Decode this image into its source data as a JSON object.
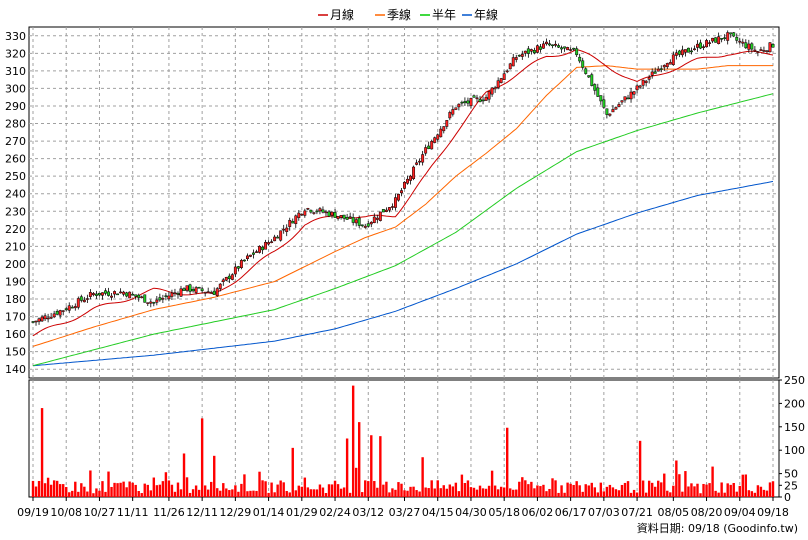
{
  "chart_data": {
    "type": "candlestick+line+bar",
    "legend": [
      {
        "label": "月線",
        "color": "#cc0000"
      },
      {
        "label": "季線",
        "color": "#ff6600"
      },
      {
        "label": "半年",
        "color": "#00cc00"
      },
      {
        "label": "年線",
        "color": "#0055cc"
      }
    ],
    "price_axis": {
      "ylim": [
        135,
        335
      ],
      "ticks": [
        140,
        150,
        160,
        170,
        180,
        190,
        200,
        210,
        220,
        230,
        240,
        250,
        260,
        270,
        280,
        290,
        300,
        310,
        320,
        330
      ]
    },
    "volume_axis": {
      "ylim": [
        0,
        250
      ],
      "ticks": [
        0,
        25,
        50,
        100,
        150,
        200,
        250
      ]
    },
    "x_tick_labels": [
      "09/19",
      "10/08",
      "10/27",
      "11/11",
      "11/26",
      "12/11",
      "12/29",
      "01/14",
      "01/29",
      "02/24",
      "03/12",
      "03/27",
      "04/15",
      "04/30",
      "05/18",
      "06/02",
      "06/17",
      "07/03",
      "07/21",
      "08/05",
      "08/20",
      "09/04",
      "09/18"
    ],
    "num_days": 246,
    "close_anchors": [
      [
        0,
        167
      ],
      [
        10,
        174
      ],
      [
        20,
        183
      ],
      [
        30,
        184
      ],
      [
        40,
        178
      ],
      [
        50,
        186
      ],
      [
        60,
        184
      ],
      [
        70,
        202
      ],
      [
        80,
        215
      ],
      [
        90,
        232
      ],
      [
        100,
        228
      ],
      [
        110,
        222
      ],
      [
        120,
        236
      ],
      [
        130,
        265
      ],
      [
        140,
        290
      ],
      [
        150,
        295
      ],
      [
        160,
        318
      ],
      [
        170,
        325
      ],
      [
        180,
        320
      ],
      [
        190,
        285
      ],
      [
        200,
        300
      ],
      [
        210,
        316
      ],
      [
        220,
        324
      ],
      [
        230,
        330
      ],
      [
        240,
        321
      ],
      [
        245,
        325
      ]
    ],
    "ma_month": [
      [
        0,
        159
      ],
      [
        20,
        174
      ],
      [
        40,
        185
      ],
      [
        60,
        182
      ],
      [
        80,
        207
      ],
      [
        90,
        222
      ],
      [
        100,
        228
      ],
      [
        110,
        226
      ],
      [
        120,
        228
      ],
      [
        130,
        250
      ],
      [
        140,
        275
      ],
      [
        150,
        297
      ],
      [
        160,
        308
      ],
      [
        170,
        318
      ],
      [
        180,
        322
      ],
      [
        190,
        313
      ],
      [
        200,
        303
      ],
      [
        210,
        310
      ],
      [
        220,
        316
      ],
      [
        230,
        320
      ],
      [
        245,
        320
      ]
    ],
    "ma_quarter": [
      [
        0,
        153
      ],
      [
        20,
        164
      ],
      [
        40,
        174
      ],
      [
        60,
        181
      ],
      [
        80,
        190
      ],
      [
        100,
        207
      ],
      [
        110,
        215
      ],
      [
        120,
        221
      ],
      [
        130,
        234
      ],
      [
        140,
        250
      ],
      [
        150,
        263
      ],
      [
        160,
        277
      ],
      [
        170,
        296
      ],
      [
        180,
        312
      ],
      [
        190,
        313
      ],
      [
        200,
        311
      ],
      [
        210,
        311
      ],
      [
        220,
        311
      ],
      [
        230,
        313
      ],
      [
        245,
        313
      ]
    ],
    "ma_halfyear": [
      [
        0,
        142
      ],
      [
        40,
        160
      ],
      [
        80,
        174
      ],
      [
        100,
        186
      ],
      [
        120,
        199
      ],
      [
        140,
        218
      ],
      [
        160,
        243
      ],
      [
        180,
        264
      ],
      [
        200,
        276
      ],
      [
        220,
        286
      ],
      [
        245,
        297
      ]
    ],
    "ma_year": [
      [
        0,
        142
      ],
      [
        40,
        148
      ],
      [
        80,
        156
      ],
      [
        100,
        163
      ],
      [
        120,
        173
      ],
      [
        140,
        186
      ],
      [
        160,
        200
      ],
      [
        180,
        217
      ],
      [
        200,
        229
      ],
      [
        220,
        239
      ],
      [
        245,
        247
      ]
    ],
    "volume_spikes": [
      [
        3,
        190
      ],
      [
        56,
        168
      ],
      [
        106,
        238
      ],
      [
        115,
        130
      ],
      [
        129,
        85
      ],
      [
        157,
        148
      ],
      [
        201,
        120
      ],
      [
        213,
        78
      ],
      [
        225,
        65
      ],
      [
        50,
        93
      ],
      [
        60,
        88
      ],
      [
        86,
        105
      ],
      [
        104,
        125
      ],
      [
        108,
        160
      ],
      [
        112,
        132
      ]
    ],
    "footer_text": "資料日期: 09/18  (Goodinfo.tw)"
  }
}
